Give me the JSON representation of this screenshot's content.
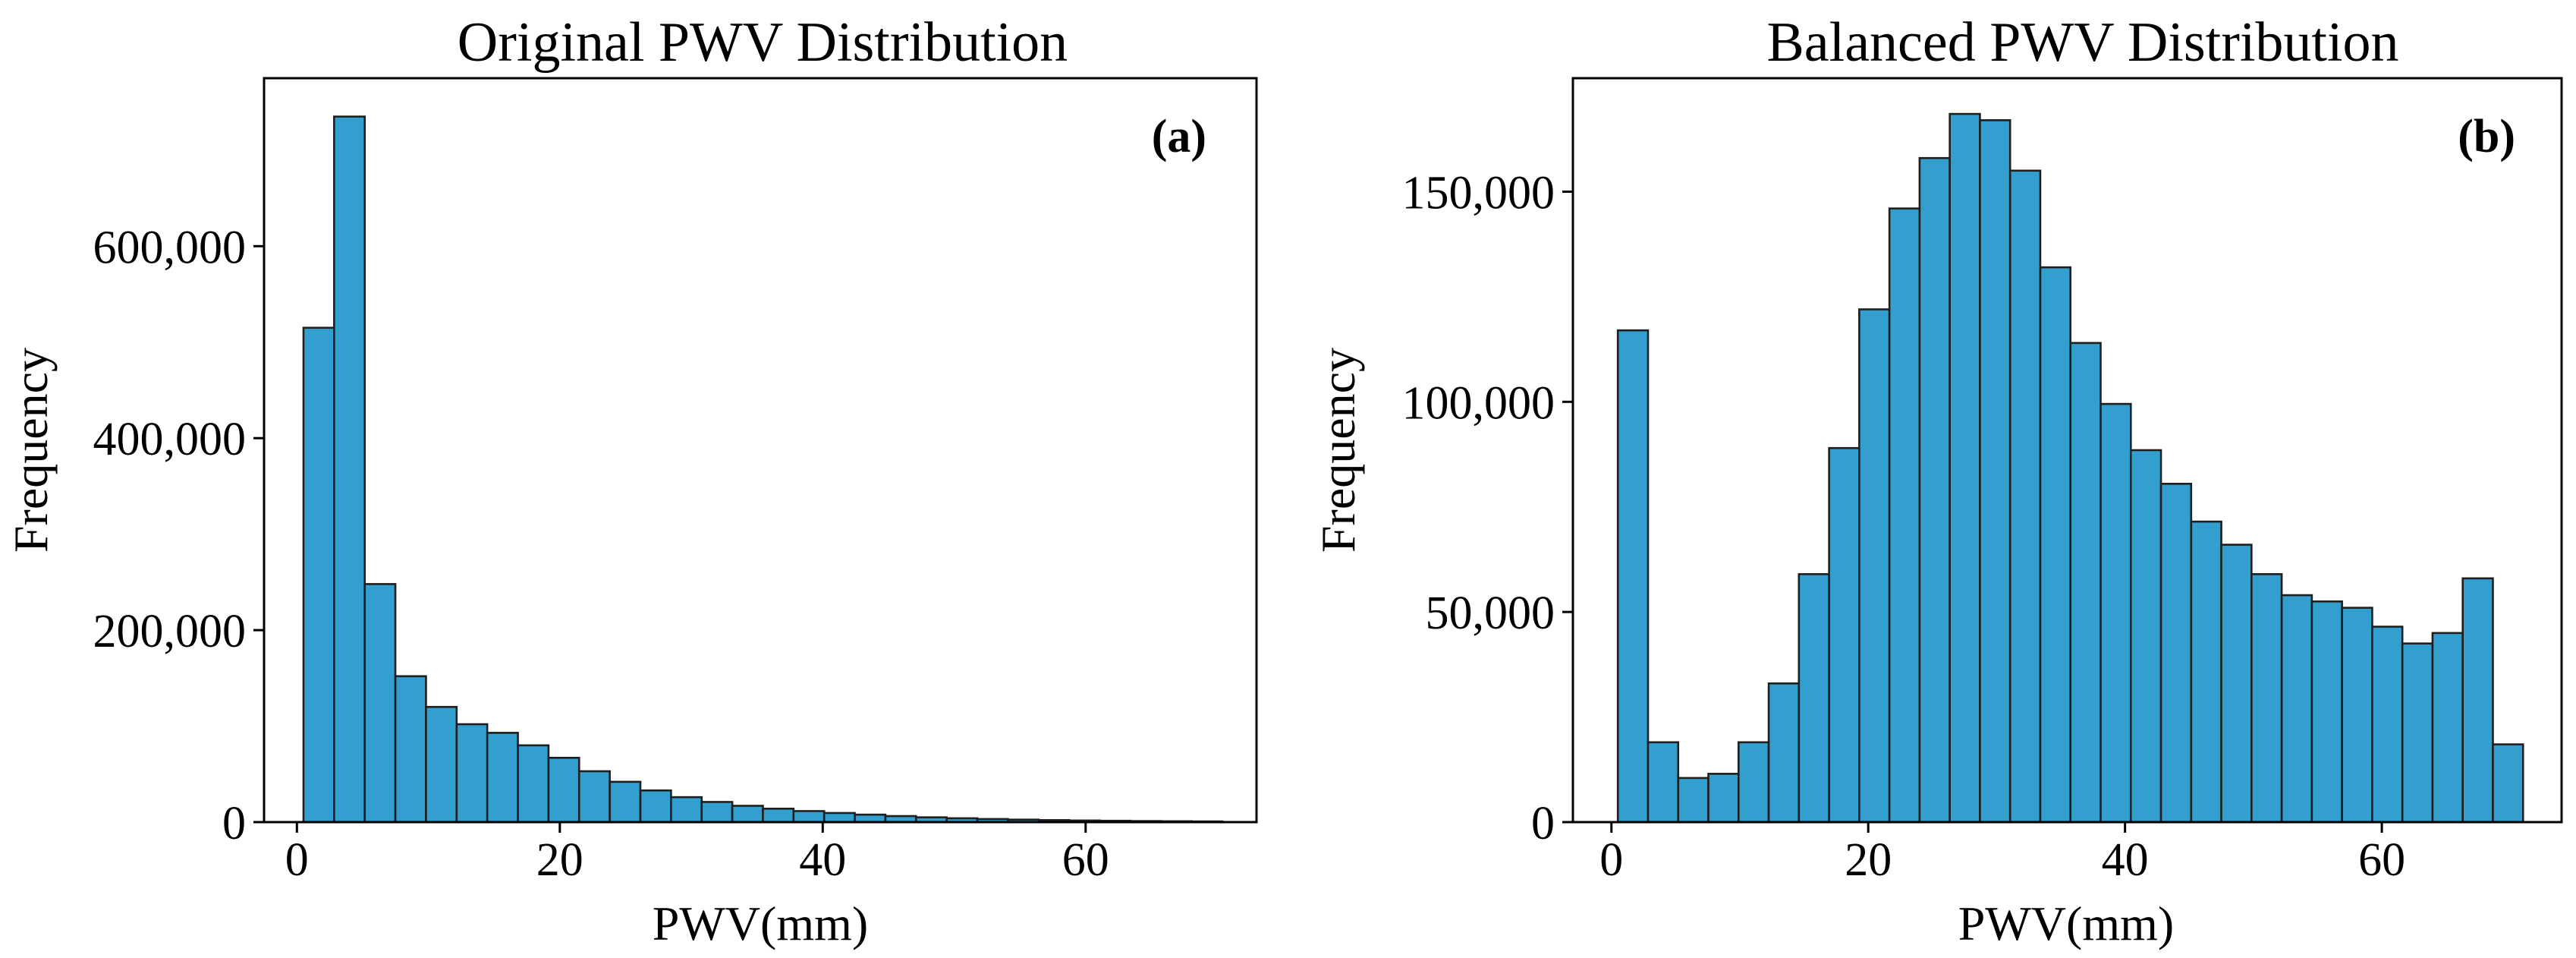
{
  "figure": {
    "colors": {
      "bar_fill": "#329fcf",
      "bar_edge": "#1f1f1f",
      "axes": "#000000",
      "background": "#ffffff"
    }
  },
  "chart_data": [
    {
      "type": "bar",
      "title": "Original PWV Distribution",
      "panel_label": "(a)",
      "xlabel": "PWV(mm)",
      "ylabel": "Frequency",
      "xlim": [
        -2.5,
        73
      ],
      "ylim": [
        0,
        775000
      ],
      "xticks": [
        0,
        20,
        40,
        60
      ],
      "xtick_labels": [
        "0",
        "20",
        "40",
        "60"
      ],
      "yticks": [
        0,
        200000,
        400000,
        600000
      ],
      "ytick_labels": [
        "0",
        "200,000",
        "400,000",
        "600,000"
      ],
      "bin_start": 0.5,
      "bin_width": 2.33,
      "values": [
        515000,
        735000,
        248000,
        152000,
        120000,
        102000,
        93000,
        80000,
        67000,
        53000,
        42000,
        33000,
        26000,
        21000,
        17000,
        14000,
        11500,
        9500,
        7800,
        6300,
        5000,
        4000,
        3200,
        2600,
        2100,
        1700,
        1400,
        1100,
        900,
        700
      ]
    },
    {
      "type": "bar",
      "title": "Balanced PWV Distribution",
      "panel_label": "(b)",
      "xlabel": "PWV(mm)",
      "ylabel": "Frequency",
      "xlim": [
        -3,
        74
      ],
      "ylim": [
        0,
        177000
      ],
      "xticks": [
        0,
        20,
        40,
        60
      ],
      "xtick_labels": [
        "0",
        "20",
        "40",
        "60"
      ],
      "yticks": [
        0,
        50000,
        100000,
        150000
      ],
      "ytick_labels": [
        "0",
        "50,000",
        "100,000",
        "150,000"
      ],
      "bin_start": 0.5,
      "bin_width": 2.35,
      "values": [
        117000,
        19000,
        10500,
        11500,
        19000,
        33000,
        59000,
        89000,
        122000,
        146000,
        158000,
        168500,
        167000,
        155000,
        132000,
        114000,
        99500,
        88500,
        80500,
        71500,
        66000,
        59000,
        54000,
        52500,
        51000,
        46500,
        42500,
        45000,
        58000,
        18500
      ]
    }
  ]
}
